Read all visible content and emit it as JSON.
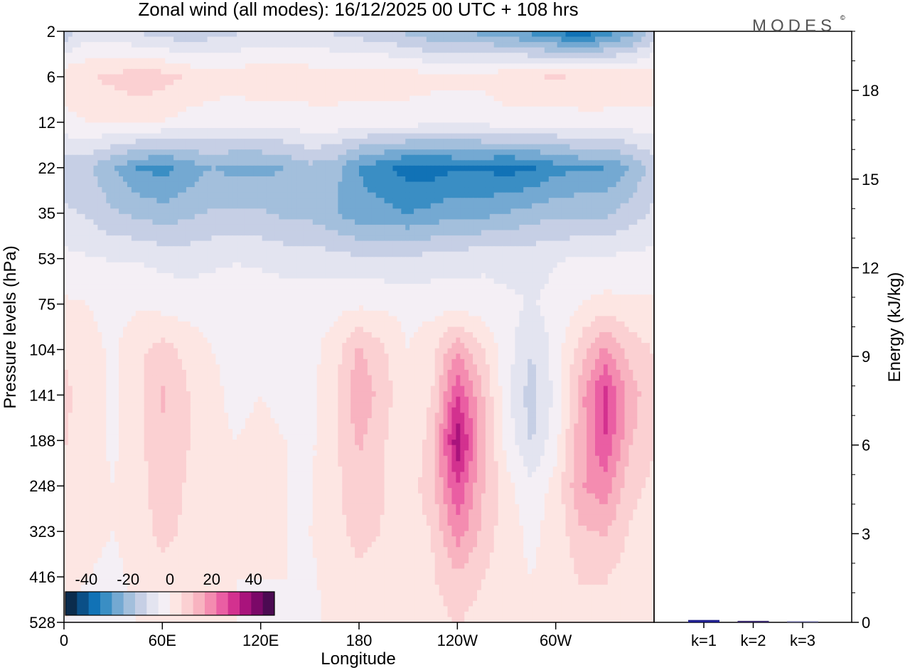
{
  "chart_data": [
    {
      "type": "heatmap",
      "title": "Zonal wind (all modes):  16/12/2025  00 UTC  + 108 hrs",
      "xlabel": "Longitude",
      "ylabel": "Pressure levels (hPa)",
      "x_ticks": [
        "0",
        "60E",
        "120E",
        "180",
        "120W",
        "60W"
      ],
      "x_tick_lon": [
        0,
        60,
        120,
        180,
        240,
        300
      ],
      "xlim": [
        0,
        360
      ],
      "y_ticks": [
        "2",
        "6",
        "12",
        "22",
        "35",
        "53",
        "75",
        "104",
        "141",
        "188",
        "248",
        "323",
        "416",
        "528"
      ],
      "colorbar": {
        "ticks": [
          "-40",
          "-20",
          "0",
          "20",
          "40"
        ],
        "range": [
          -50,
          50
        ],
        "colors": [
          "#0b2c4d",
          "#0b4f87",
          "#1172b6",
          "#3a8ec4",
          "#74a9d2",
          "#a3bfdc",
          "#c6cfe5",
          "#e3e4f0",
          "#f4eff5",
          "#fde6e3",
          "#fbd0d2",
          "#f8b3c0",
          "#f48cb0",
          "#ea5ea3",
          "#d3318f",
          "#a9137c",
          "#7b0868",
          "#4c0a52"
        ]
      },
      "field_lon": [
        0,
        15,
        30,
        45,
        60,
        75,
        90,
        105,
        120,
        135,
        150,
        165,
        180,
        195,
        210,
        225,
        240,
        255,
        270,
        285,
        300,
        315,
        330,
        345,
        360
      ],
      "field_levels": [
        2,
        6,
        12,
        22,
        35,
        53,
        75,
        104,
        141,
        188,
        248,
        323,
        416,
        528
      ],
      "zonal_wind": [
        [
          -15,
          -8,
          -10,
          -12,
          -14,
          -16,
          -14,
          -12,
          -10,
          -10,
          -10,
          -12,
          -14,
          -16,
          -18,
          -22,
          -22,
          -24,
          -26,
          -30,
          -34,
          -38,
          -32,
          -26,
          -15
        ],
        [
          4,
          5,
          7,
          9,
          8,
          5,
          3,
          3,
          4,
          4,
          3,
          3,
          4,
          4,
          3,
          2,
          2,
          2,
          4,
          5,
          6,
          5,
          5,
          4,
          4
        ],
        [
          -2,
          0,
          1,
          1,
          0,
          -2,
          -3,
          -4,
          -3,
          -3,
          -2,
          -2,
          -3,
          -3,
          -3,
          -4,
          -4,
          -4,
          -2,
          -2,
          -3,
          -2,
          -2,
          -2,
          -2
        ],
        [
          -14,
          -16,
          -22,
          -28,
          -30,
          -26,
          -22,
          -24,
          -24,
          -22,
          -18,
          -20,
          -28,
          -32,
          -36,
          -36,
          -34,
          -34,
          -36,
          -34,
          -30,
          -28,
          -28,
          -22,
          -14
        ],
        [
          -10,
          -12,
          -16,
          -18,
          -20,
          -18,
          -16,
          -16,
          -16,
          -18,
          -18,
          -22,
          -26,
          -26,
          -28,
          -26,
          -24,
          -24,
          -22,
          -20,
          -18,
          -18,
          -18,
          -14,
          -10
        ],
        [
          -4,
          -5,
          -6,
          -6,
          -7,
          -8,
          -7,
          -6,
          -7,
          -8,
          -8,
          -9,
          -10,
          -10,
          -10,
          -9,
          -8,
          -7,
          -8,
          -7,
          -6,
          -5,
          -5,
          -4,
          -4
        ],
        [
          1,
          0,
          -2,
          -1,
          -2,
          -3,
          -2,
          -2,
          -1,
          -2,
          -3,
          -2,
          -1,
          -1,
          -2,
          -2,
          -3,
          -3,
          -4,
          -6,
          -4,
          0,
          2,
          1,
          1
        ],
        [
          5,
          2,
          -1,
          4,
          8,
          4,
          0,
          -1,
          0,
          -1,
          -2,
          3,
          12,
          6,
          0,
          4,
          16,
          6,
          -3,
          -11,
          -3,
          8,
          18,
          9,
          5
        ],
        [
          7,
          3,
          -1,
          4,
          12,
          6,
          1,
          -1,
          0,
          -1,
          -2,
          4,
          16,
          8,
          1,
          6,
          28,
          12,
          -4,
          -14,
          -4,
          14,
          30,
          14,
          7
        ],
        [
          6,
          2,
          -1,
          4,
          10,
          6,
          1,
          0,
          1,
          0,
          -1,
          4,
          12,
          6,
          1,
          8,
          38,
          14,
          -2,
          -12,
          -2,
          14,
          28,
          12,
          6
        ],
        [
          4,
          2,
          0,
          3,
          9,
          5,
          1,
          0,
          1,
          0,
          -1,
          4,
          10,
          6,
          2,
          10,
          28,
          12,
          2,
          -4,
          2,
          16,
          20,
          8,
          4
        ],
        [
          2,
          1,
          0,
          2,
          8,
          4,
          1,
          0,
          0,
          0,
          0,
          3,
          8,
          5,
          2,
          6,
          20,
          10,
          2,
          -1,
          2,
          10,
          12,
          5,
          2
        ],
        [
          1,
          0,
          -1,
          1,
          3,
          2,
          0,
          0,
          0,
          0,
          -1,
          2,
          4,
          3,
          1,
          5,
          10,
          6,
          1,
          0,
          1,
          6,
          6,
          3,
          1
        ],
        [
          0,
          -1,
          -1,
          0,
          2,
          1,
          0,
          0,
          -1,
          -1,
          -1,
          1,
          2,
          1,
          0,
          3,
          6,
          3,
          0,
          0,
          1,
          3,
          3,
          1,
          0
        ]
      ]
    },
    {
      "type": "bar",
      "title": "",
      "xlabel": "",
      "ylabel": "Energy (kJ/kg)",
      "categories": [
        "k=1",
        "k=2",
        "k=3"
      ],
      "values": [
        0.08,
        0.05,
        0.02
      ],
      "ylim": [
        0,
        20
      ],
      "y_ticks": [
        "0",
        "3",
        "6",
        "9",
        "12",
        "15",
        "18"
      ],
      "bar_colors": [
        "#1f1f8f",
        "#3a2a6a",
        "#6a6a9a"
      ]
    }
  ],
  "logo_text": "MODES",
  "logo_mark": "©"
}
